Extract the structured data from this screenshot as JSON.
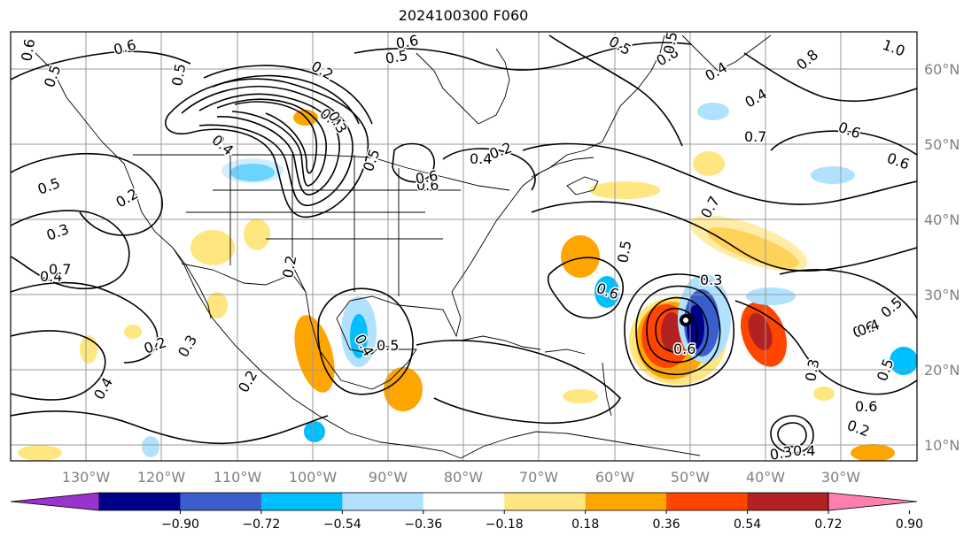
{
  "title": "2024100300 F060",
  "map": {
    "lon_ticks": [
      "130°W",
      "120°W",
      "110°W",
      "100°W",
      "90°W",
      "80°W",
      "70°W",
      "60°W",
      "50°W",
      "40°W",
      "30°W"
    ],
    "lat_ticks": [
      "60°N",
      "50°N",
      "40°N",
      "30°N",
      "20°N",
      "10°N"
    ],
    "tick_color": "#808080",
    "contour_labels": [
      "0.6",
      "0.5",
      "0.6",
      "0.5",
      "0.8",
      "0.5",
      "0.4",
      "0.8",
      "1.0",
      "0.5",
      "0.6",
      "0.5",
      "0.4",
      "0.6",
      "0.7",
      "0.6",
      "0.5",
      "0.4",
      "0.4",
      "0.6",
      "0.5",
      "0.2",
      "0.3",
      "0.4",
      "0.2",
      "0.6",
      "0.7",
      "0.5",
      "0.7",
      "0.6",
      "0.5",
      "0.6",
      "0.3",
      "0.2",
      "0.3",
      "0.4",
      "0.4",
      "0.5",
      "0.2",
      "0.3",
      "0.2",
      "0.4",
      "0.3",
      "0.6",
      "0.5",
      "0.4",
      "0.6",
      "0.2",
      "0.3",
      "0.4",
      "0.2",
      "0.4"
    ]
  },
  "colorbar": {
    "ticks": [
      "−0.90",
      "−0.72",
      "−0.54",
      "−0.36",
      "−0.18",
      "0.18",
      "0.36",
      "0.54",
      "0.72",
      "0.90"
    ],
    "colors": [
      "#9a32cd",
      "#00008b",
      "#3a5fcd",
      "#00bfff",
      "#b0e2ff",
      "#ffffff",
      "#ffe680",
      "#ffa500",
      "#ff4500",
      "#b22222",
      "#ff7fae"
    ]
  }
}
